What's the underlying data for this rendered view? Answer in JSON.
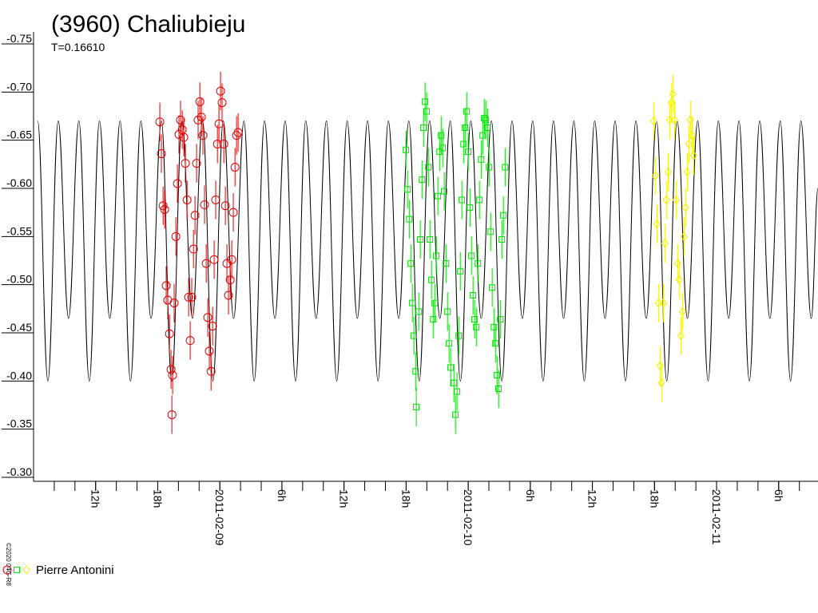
{
  "chart_data": {
    "type": "lightcurve",
    "title": "(3960) Chaliubieju",
    "subtitle": "T=0.16610",
    "credit": "©2020 04G-R8",
    "legend": "Pierre Antonini",
    "y_inverted": true,
    "ylim": [
      -0.75,
      -0.3
    ],
    "yticks": [
      {
        "value": -0.75,
        "label": "-0.75"
      },
      {
        "value": -0.7,
        "label": "-0.70"
      },
      {
        "value": -0.65,
        "label": "-0.65"
      },
      {
        "value": -0.6,
        "label": "-0.60"
      },
      {
        "value": -0.55,
        "label": "-0.55"
      },
      {
        "value": -0.5,
        "label": "-0.50"
      },
      {
        "value": -0.45,
        "label": "-0.45"
      },
      {
        "value": -0.4,
        "label": "-0.40"
      },
      {
        "value": -0.35,
        "label": "-0.35"
      },
      {
        "value": -0.3,
        "label": "-0.30"
      }
    ],
    "xlim": [
      "2011-02-08T06:00",
      "2011-02-11T09:48"
    ],
    "xticks": [
      {
        "value": "2011-02-08T12:00",
        "label": "12h"
      },
      {
        "value": "2011-02-08T18:00",
        "label": "18h"
      },
      {
        "value": "2011-02-09T00:00",
        "label": "2011-02-09"
      },
      {
        "value": "2011-02-09T06:00",
        "label": "6h"
      },
      {
        "value": "2011-02-09T12:00",
        "label": "12h"
      },
      {
        "value": "2011-02-09T18:00",
        "label": "18h"
      },
      {
        "value": "2011-02-10T00:00",
        "label": "2011-02-10"
      },
      {
        "value": "2011-02-10T06:00",
        "label": "6h"
      },
      {
        "value": "2011-02-10T12:00",
        "label": "12h"
      },
      {
        "value": "2011-02-10T18:00",
        "label": "18h"
      },
      {
        "value": "2011-02-11T00:00",
        "label": "2011-02-11"
      },
      {
        "value": "2011-02-11T06:00",
        "label": "6h"
      }
    ],
    "xminorticks": [
      "2011-02-08T08:00",
      "2011-02-08T10:00",
      "2011-02-08T12:00",
      "2011-02-08T14:00",
      "2011-02-08T16:00",
      "2011-02-08T18:00",
      "2011-02-08T20:00",
      "2011-02-08T22:00",
      "2011-02-09T00:00",
      "2011-02-09T02:00",
      "2011-02-09T04:00",
      "2011-02-09T06:00",
      "2011-02-09T08:00",
      "2011-02-09T10:00",
      "2011-02-09T12:00",
      "2011-02-09T14:00",
      "2011-02-09T16:00",
      "2011-02-09T18:00",
      "2011-02-09T20:00",
      "2011-02-09T22:00",
      "2011-02-10T00:00",
      "2011-02-10T02:00",
      "2011-02-10T04:00",
      "2011-02-10T06:00",
      "2011-02-10T08:00",
      "2011-02-10T10:00",
      "2011-02-10T12:00",
      "2011-02-10T14:00",
      "2011-02-10T16:00",
      "2011-02-10T18:00",
      "2011-02-10T20:00",
      "2011-02-10T22:00",
      "2011-02-11T00:00",
      "2011-02-11T02:00",
      "2011-02-11T04:00",
      "2011-02-11T06:00",
      "2011-02-11T08:00"
    ],
    "model": {
      "color": "#000000",
      "x": [
        "2011-02-08T06:24",
        "2011-02-08T07:23",
        "2011-02-08T08:23",
        "2011-02-08T09:23",
        "2011-02-08T10:23",
        "2011-02-08T11:23",
        "2011-02-08T12:22",
        "2011-02-08T13:22",
        "2011-02-08T14:22",
        "2011-02-08T15:22",
        "2011-02-08T16:22",
        "2011-02-08T17:21",
        "2011-02-08T18:21",
        "2011-02-08T19:21",
        "2011-02-08T20:21",
        "2011-02-08T21:21",
        "2011-02-08T22:20",
        "2011-02-08T23:20",
        "2011-02-09T00:20",
        "2011-02-09T01:20",
        "2011-02-09T02:20",
        "2011-02-09T03:19",
        "2011-02-09T04:19",
        "2011-02-09T05:19",
        "2011-02-09T06:19",
        "2011-02-09T07:19",
        "2011-02-09T08:18",
        "2011-02-09T09:18",
        "2011-02-09T10:18",
        "2011-02-09T11:18",
        "2011-02-09T12:18",
        "2011-02-09T13:17",
        "2011-02-09T14:17",
        "2011-02-09T15:17",
        "2011-02-09T16:17",
        "2011-02-09T17:17",
        "2011-02-09T18:16",
        "2011-02-09T19:16",
        "2011-02-09T20:16",
        "2011-02-09T21:16",
        "2011-02-09T22:16",
        "2011-02-09T23:15",
        "2011-02-10T00:15",
        "2011-02-10T01:15",
        "2011-02-10T02:15",
        "2011-02-10T03:15",
        "2011-02-10T04:14",
        "2011-02-10T05:14",
        "2011-02-10T06:14",
        "2011-02-10T07:14",
        "2011-02-10T08:14",
        "2011-02-10T09:13",
        "2011-02-10T10:13",
        "2011-02-10T11:13",
        "2011-02-10T12:13",
        "2011-02-10T13:13",
        "2011-02-10T14:12",
        "2011-02-10T15:12",
        "2011-02-10T16:12",
        "2011-02-10T17:12",
        "2011-02-10T18:12",
        "2011-02-10T19:11",
        "2011-02-10T20:11",
        "2011-02-10T21:11",
        "2011-02-10T22:11",
        "2011-02-10T23:11",
        "2011-02-11T00:10",
        "2011-02-11T01:10",
        "2011-02-11T02:10",
        "2011-02-11T03:10",
        "2011-02-11T04:10",
        "2011-02-11T05:09",
        "2011-02-11T06:09",
        "2011-02-11T07:09",
        "2011-02-11T08:09",
        "2011-02-11T09:09",
        "2011-02-11T09:48"
      ],
      "values": [
        -0.67,
        -0.4,
        -0.67,
        -0.465,
        -0.67,
        -0.4,
        -0.67,
        -0.465,
        -0.67,
        -0.4,
        -0.67,
        -0.465,
        -0.67,
        -0.4,
        -0.67,
        -0.465,
        -0.67,
        -0.4,
        -0.67,
        -0.465,
        -0.67,
        -0.4,
        -0.67,
        -0.465,
        -0.67,
        -0.4,
        -0.67,
        -0.465,
        -0.67,
        -0.4,
        -0.67,
        -0.465,
        -0.67,
        -0.4,
        -0.67,
        -0.465,
        -0.67,
        -0.4,
        -0.67,
        -0.465,
        -0.67,
        -0.4,
        -0.67,
        -0.465,
        -0.67,
        -0.4,
        -0.67,
        -0.465,
        -0.67,
        -0.4,
        -0.67,
        -0.465,
        -0.67,
        -0.4,
        -0.67,
        -0.465,
        -0.67,
        -0.4,
        -0.67,
        -0.465,
        -0.67,
        -0.4,
        -0.67,
        -0.465,
        -0.67,
        -0.4,
        -0.67,
        -0.465,
        -0.67,
        -0.4,
        -0.67,
        -0.465,
        -0.67,
        -0.4,
        -0.67,
        -0.465,
        -0.6
      ]
    },
    "series": [
      {
        "marker": "circle",
        "color": "#e00000",
        "error": 0.02,
        "x": [
          "2011-02-08T18:12",
          "2011-02-08T18:21",
          "2011-02-08T18:31",
          "2011-02-08T18:40",
          "2011-02-08T18:49",
          "2011-02-08T18:58",
          "2011-02-08T19:08",
          "2011-02-08T19:17",
          "2011-02-08T19:22",
          "2011-02-08T19:26",
          "2011-02-08T19:35",
          "2011-02-08T19:45",
          "2011-02-08T19:54",
          "2011-02-08T20:03",
          "2011-02-08T20:12",
          "2011-02-08T20:22",
          "2011-02-08T20:31",
          "2011-02-08T20:40",
          "2011-02-08T20:50",
          "2011-02-08T20:59",
          "2011-02-08T21:08",
          "2011-02-08T21:17",
          "2011-02-08T21:27",
          "2011-02-08T21:36",
          "2011-02-08T21:45",
          "2011-02-08T21:54",
          "2011-02-08T22:04",
          "2011-02-08T22:13",
          "2011-02-08T22:22",
          "2011-02-08T22:31",
          "2011-02-08T22:41",
          "2011-02-08T22:50",
          "2011-02-08T22:59",
          "2011-02-08T23:09",
          "2011-02-08T23:18",
          "2011-02-08T23:27",
          "2011-02-08T23:36",
          "2011-02-08T23:46",
          "2011-02-08T23:55",
          "2011-02-09T00:04",
          "2011-02-09T00:13",
          "2011-02-09T00:23",
          "2011-02-09T00:32",
          "2011-02-09T00:41",
          "2011-02-09T00:50",
          "2011-02-09T01:00",
          "2011-02-09T01:09",
          "2011-02-09T01:18",
          "2011-02-09T01:28",
          "2011-02-09T01:37",
          "2011-02-09T01:46"
        ],
        "values": [
          -0.669,
          -0.636,
          -0.582,
          -0.578,
          -0.499,
          -0.484,
          -0.449,
          -0.412,
          -0.365,
          -0.406,
          -0.481,
          -0.55,
          -0.605,
          -0.656,
          -0.671,
          -0.661,
          -0.653,
          -0.626,
          -0.588,
          -0.487,
          -0.442,
          -0.487,
          -0.537,
          -0.572,
          -0.626,
          -0.671,
          -0.69,
          -0.674,
          -0.655,
          -0.583,
          -0.522,
          -0.466,
          -0.431,
          -0.41,
          -0.457,
          -0.526,
          -0.588,
          -0.646,
          -0.667,
          -0.701,
          -0.689,
          -0.646,
          -0.582,
          -0.522,
          -0.489,
          -0.505,
          -0.526,
          -0.575,
          -0.622,
          -0.655,
          -0.658
        ]
      },
      {
        "marker": "square",
        "color": "#00dd00",
        "error": 0.02,
        "x": [
          "2011-02-09T17:59",
          "2011-02-09T18:08",
          "2011-02-09T18:18",
          "2011-02-09T18:27",
          "2011-02-09T18:36",
          "2011-02-09T18:45",
          "2011-02-09T18:55",
          "2011-02-09T18:59",
          "2011-02-09T19:13",
          "2011-02-09T19:22",
          "2011-02-09T19:32",
          "2011-02-09T19:41",
          "2011-02-09T19:50",
          "2011-02-09T19:59",
          "2011-02-09T20:09",
          "2011-02-09T20:18",
          "2011-02-09T20:27",
          "2011-02-09T20:37",
          "2011-02-09T20:46",
          "2011-02-09T20:55",
          "2011-02-09T21:04",
          "2011-02-09T21:14",
          "2011-02-09T21:23",
          "2011-02-09T21:32",
          "2011-02-09T21:41",
          "2011-02-09T21:51",
          "2011-02-09T22:00",
          "2011-02-09T22:09",
          "2011-02-09T22:18",
          "2011-02-09T22:37",
          "2011-02-09T22:46",
          "2011-02-09T22:55",
          "2011-02-09T23:05",
          "2011-02-09T23:14",
          "2011-02-09T23:23",
          "2011-02-09T23:33",
          "2011-02-09T23:42",
          "2011-02-09T23:51",
          "2011-02-10T00:00",
          "2011-02-10T00:10",
          "2011-02-10T00:19",
          "2011-02-10T00:28",
          "2011-02-10T00:37",
          "2011-02-10T00:47",
          "2011-02-10T00:56",
          "2011-02-10T01:05",
          "2011-02-10T01:15",
          "2011-02-10T01:24",
          "2011-02-10T01:33",
          "2011-02-10T01:42",
          "2011-02-10T01:52",
          "2011-02-10T02:01",
          "2011-02-10T02:10",
          "2011-02-10T02:19",
          "2011-02-10T02:29",
          "2011-02-10T02:38",
          "2011-02-10T02:47",
          "2011-02-10T02:56",
          "2011-02-10T03:06",
          "2011-02-10T03:15",
          "2011-02-10T03:24",
          "2011-02-10T03:34"
        ],
        "values": [
          -0.64,
          -0.599,
          -0.568,
          -0.522,
          -0.481,
          -0.447,
          -0.41,
          -0.373,
          -0.472,
          -0.547,
          -0.609,
          -0.663,
          -0.69,
          -0.68,
          -0.622,
          -0.547,
          -0.505,
          -0.464,
          -0.481,
          -0.53,
          -0.592,
          -0.638,
          -0.655,
          -0.642,
          -0.597,
          -0.522,
          -0.472,
          -0.439,
          -0.414,
          -0.398,
          -0.365,
          -0.389,
          -0.447,
          -0.514,
          -0.588,
          -0.646,
          -0.663,
          -0.68,
          -0.638,
          -0.58,
          -0.53,
          -0.489,
          -0.464,
          -0.456,
          -0.522,
          -0.588,
          -0.63,
          -0.655,
          -0.673,
          -0.671,
          -0.663,
          -0.622,
          -0.555,
          -0.497,
          -0.456,
          -0.439,
          -0.406,
          -0.392,
          -0.464,
          -0.547,
          -0.572,
          -0.622
        ]
      },
      {
        "marker": "diamond",
        "color": "#f0f000",
        "error": 0.02,
        "x": [
          "2011-02-10T17:55",
          "2011-02-10T18:04",
          "2011-02-10T18:14",
          "2011-02-10T18:23",
          "2011-02-10T18:32",
          "2011-02-10T18:41",
          "2011-02-10T18:51",
          "2011-02-10T19:00",
          "2011-02-10T19:09",
          "2011-02-10T19:19",
          "2011-02-10T19:28",
          "2011-02-10T19:37",
          "2011-02-10T19:46",
          "2011-02-10T19:56",
          "2011-02-10T20:05",
          "2011-02-10T20:14",
          "2011-02-10T20:23",
          "2011-02-10T20:33",
          "2011-02-10T20:42",
          "2011-02-10T20:51",
          "2011-02-10T21:00",
          "2011-02-10T21:10",
          "2011-02-10T21:19",
          "2011-02-10T21:28",
          "2011-02-10T21:38",
          "2011-02-10T21:47"
        ],
        "values": [
          -0.67,
          -0.613,
          -0.563,
          -0.481,
          -0.416,
          -0.398,
          -0.481,
          -0.543,
          -0.588,
          -0.617,
          -0.671,
          -0.689,
          -0.698,
          -0.671,
          -0.588,
          -0.522,
          -0.505,
          -0.447,
          -0.472,
          -0.55,
          -0.58,
          -0.617,
          -0.646,
          -0.671,
          -0.655,
          -0.634
        ]
      }
    ]
  }
}
